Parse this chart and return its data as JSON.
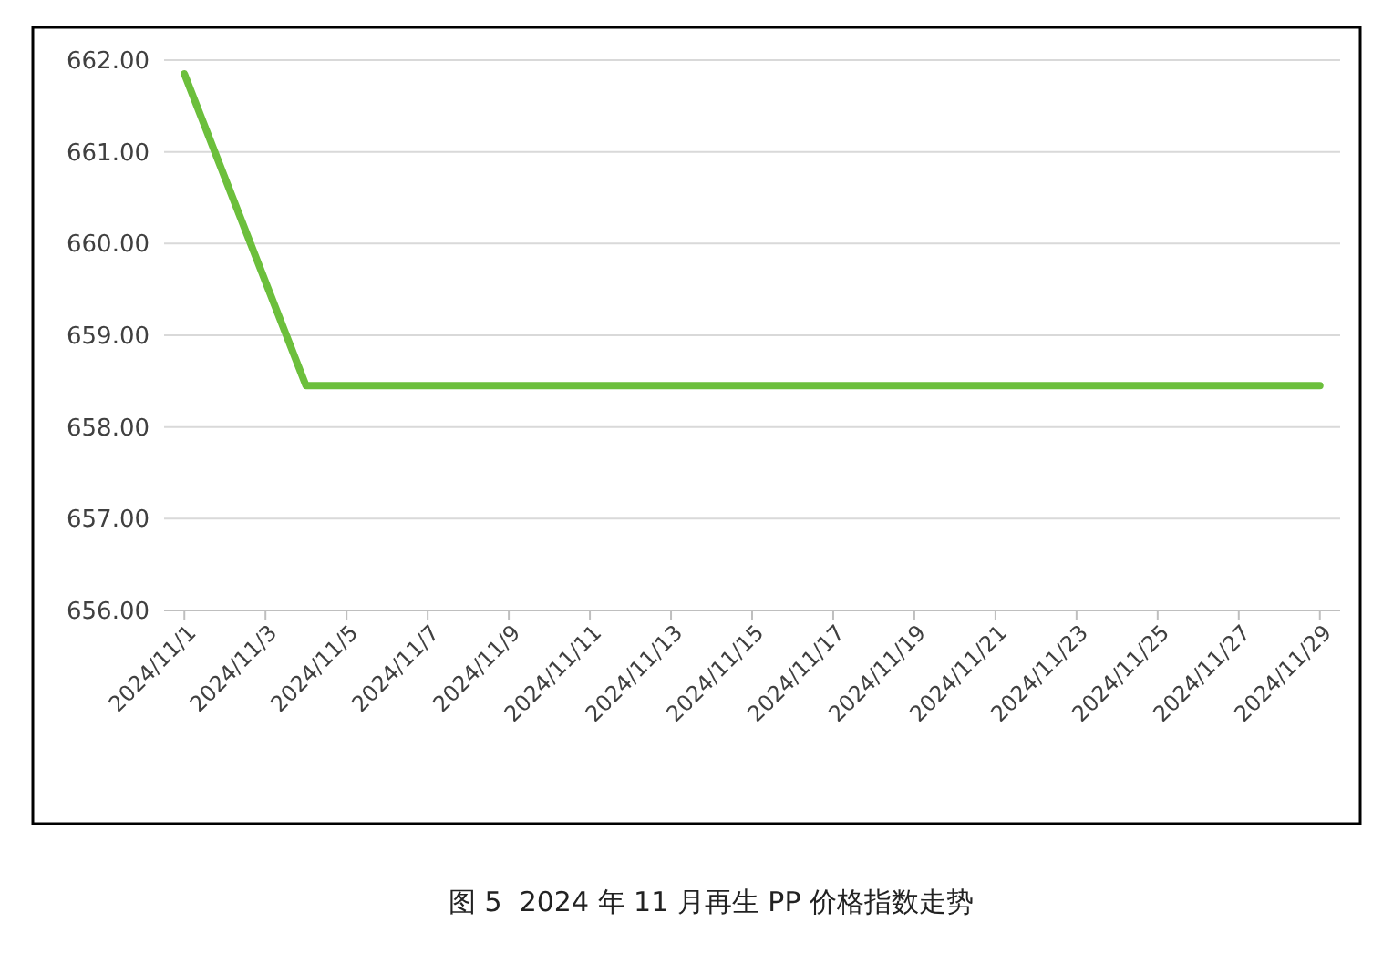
{
  "chart_data": {
    "type": "line",
    "x": [
      "2024-11-01",
      "2024-11-04",
      "2024-11-10",
      "2024-11-15",
      "2024-11-20",
      "2024-11-25",
      "2024-11-29"
    ],
    "series": [
      {
        "color": "#6cbf3c",
        "values": [
          661.85,
          658.45,
          658.45,
          658.45,
          658.45,
          658.45,
          658.45
        ]
      }
    ],
    "xlim": [
      "2024-10-31T12:00",
      "2024-11-29T12:00"
    ],
    "xticks": [
      {
        "value": "2024-11-01",
        "label": "2024/11/1"
      },
      {
        "value": "2024-11-03",
        "label": "2024/11/3"
      },
      {
        "value": "2024-11-05",
        "label": "2024/11/5"
      },
      {
        "value": "2024-11-07",
        "label": "2024/11/7"
      },
      {
        "value": "2024-11-09",
        "label": "2024/11/9"
      },
      {
        "value": "2024-11-11",
        "label": "2024/11/11"
      },
      {
        "value": "2024-11-13",
        "label": "2024/11/13"
      },
      {
        "value": "2024-11-15",
        "label": "2024/11/15"
      },
      {
        "value": "2024-11-17",
        "label": "2024/11/17"
      },
      {
        "value": "2024-11-19",
        "label": "2024/11/19"
      },
      {
        "value": "2024-11-21",
        "label": "2024/11/21"
      },
      {
        "value": "2024-11-23",
        "label": "2024/11/23"
      },
      {
        "value": "2024-11-25",
        "label": "2024/11/25"
      },
      {
        "value": "2024-11-27",
        "label": "2024/11/27"
      },
      {
        "value": "2024-11-29",
        "label": "2024/11/29"
      }
    ],
    "ylim": [
      656,
      662
    ],
    "yticks": [
      {
        "value": 656,
        "label": "656.00"
      },
      {
        "value": 657,
        "label": "657.00"
      },
      {
        "value": 658,
        "label": "658.00"
      },
      {
        "value": 659,
        "label": "659.00"
      },
      {
        "value": 660,
        "label": "660.00"
      },
      {
        "value": 661,
        "label": "661.00"
      },
      {
        "value": 662,
        "label": "662.00"
      }
    ],
    "grid": "y",
    "marker": "none",
    "line_style": "solid",
    "annotations": [
      "图 5  2024 年 11 月再生 PP 价格指数走势"
    ]
  }
}
